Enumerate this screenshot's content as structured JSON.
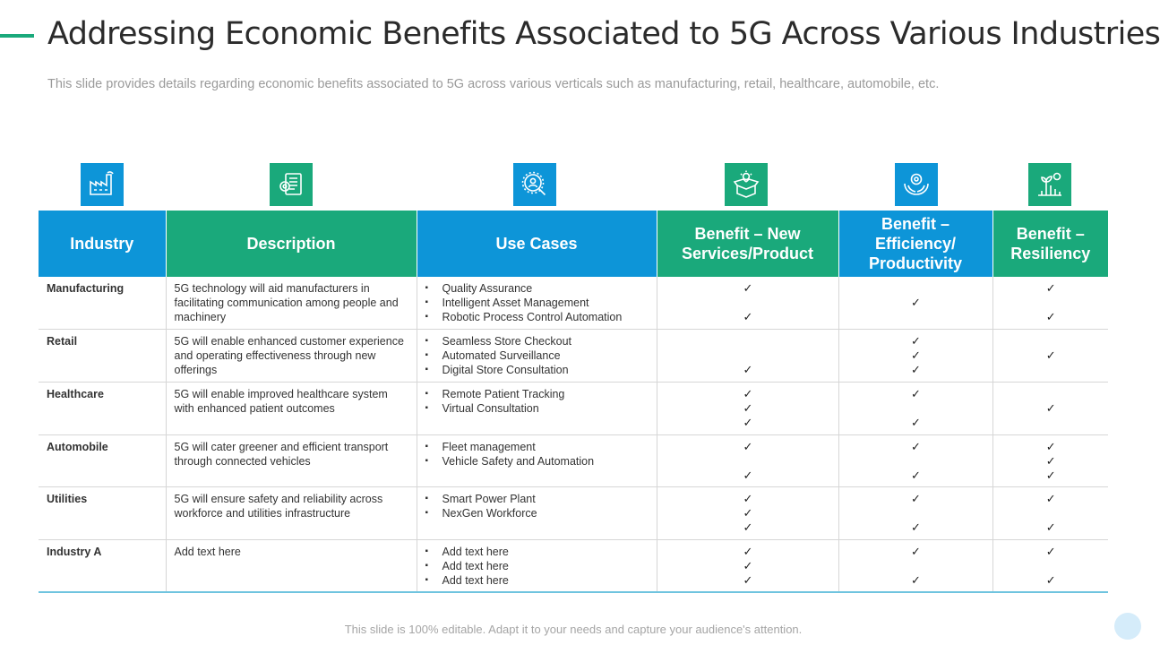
{
  "title": "Addressing Economic Benefits Associated to 5G Across Various Industries",
  "subtitle": "This slide provides details regarding economic benefits associated to 5G across various verticals such as manufacturing, retail, healthcare, automobile, etc.",
  "footer": "This slide is 100% editable. Adapt it to your needs and capture your audience's attention.",
  "colors": {
    "blue": "#0d95d8",
    "green": "#1aa97b"
  },
  "icons": [
    "factory-icon",
    "document-gear-icon",
    "search-person-icon",
    "open-box-idea-icon",
    "hands-gear-icon",
    "growth-plant-icon"
  ],
  "headers": [
    "Industry",
    "Description",
    "Use Cases",
    "Benefit – New Services/Product",
    "Benefit – Efficiency/ Productivity",
    "Benefit – Resiliency"
  ],
  "check_symbol": "✓",
  "rows": [
    {
      "industry": "Manufacturing",
      "description": "5G technology will aid manufacturers in facilitating communication among people and machinery",
      "use_cases": [
        "Quality Assurance",
        "Intelligent Asset Management",
        "Robotic Process Control Automation"
      ],
      "new_services": [
        true,
        false,
        true
      ],
      "efficiency": [
        false,
        true,
        false
      ],
      "resiliency": [
        true,
        false,
        true
      ]
    },
    {
      "industry": "Retail",
      "description": "5G will enable enhanced customer experience and operating effectiveness through new offerings",
      "use_cases": [
        "Seamless Store Checkout",
        "Automated Surveillance",
        "Digital Store Consultation"
      ],
      "new_services": [
        false,
        false,
        true
      ],
      "efficiency": [
        true,
        true,
        true
      ],
      "resiliency": [
        false,
        true,
        false
      ]
    },
    {
      "industry": "Healthcare",
      "description": "5G will enable improved healthcare system with enhanced patient outcomes",
      "use_cases": [
        "Remote Patient Tracking",
        "Virtual Consultation"
      ],
      "new_services": [
        true,
        true,
        true
      ],
      "efficiency": [
        true,
        false,
        true
      ],
      "resiliency": [
        false,
        true,
        false
      ]
    },
    {
      "industry": "Automobile",
      "description": "5G will cater greener and efficient transport through connected vehicles",
      "use_cases": [
        "Fleet management",
        "Vehicle Safety and Automation"
      ],
      "new_services": [
        true,
        false,
        true
      ],
      "efficiency": [
        true,
        false,
        true
      ],
      "resiliency": [
        true,
        true,
        true
      ]
    },
    {
      "industry": "Utilities",
      "description": "5G will ensure safety and reliability across workforce and utilities infrastructure",
      "use_cases": [
        "Smart Power Plant",
        "NexGen Workforce"
      ],
      "new_services": [
        true,
        true,
        true
      ],
      "efficiency": [
        true,
        false,
        true
      ],
      "resiliency": [
        true,
        false,
        true
      ]
    },
    {
      "industry": "Industry A",
      "description": "Add text here",
      "use_cases": [
        "Add text here",
        "Add text here",
        "Add text here"
      ],
      "new_services": [
        true,
        true,
        true
      ],
      "efficiency": [
        true,
        false,
        true
      ],
      "resiliency": [
        true,
        false,
        true
      ]
    }
  ]
}
